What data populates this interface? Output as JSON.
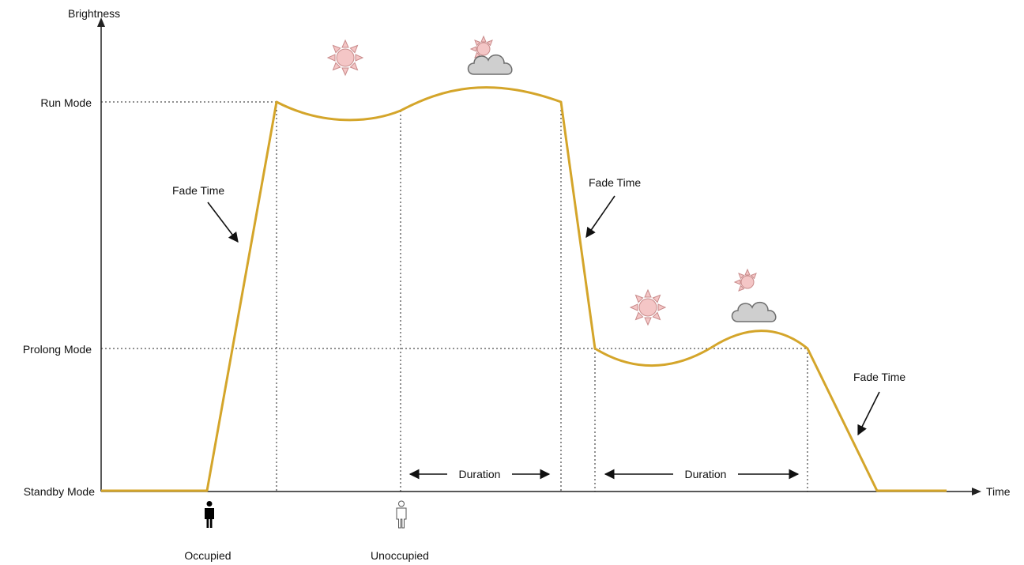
{
  "diagram": {
    "y_axis_label": "Brightness",
    "x_axis_label": "Time",
    "levels": {
      "run_mode": "Run Mode",
      "prolong_mode": "Prolong Mode",
      "standby_mode": "Standby Mode"
    },
    "annotations": {
      "fade_time_1": "Fade Time",
      "fade_time_2": "Fade Time",
      "fade_time_3": "Fade Time",
      "duration_1": "Duration",
      "duration_2": "Duration"
    },
    "events": {
      "occupied": "Occupied",
      "unoccupied": "Unoccupied"
    },
    "icons": [
      "sun-icon",
      "sun-behind-cloud-icon",
      "sun-icon",
      "sun-behind-cloud-icon",
      "person-occupied-icon",
      "person-unoccupied-icon"
    ],
    "colors": {
      "curve": "#D4A52A",
      "sun_fill": "#F4C6C6",
      "sun_stroke": "#C98B8B",
      "cloud_fill": "#CFCFCF",
      "cloud_stroke": "#6E6E6E",
      "occupied_person": "#000000",
      "unoccupied_person": "#ffffff"
    }
  }
}
